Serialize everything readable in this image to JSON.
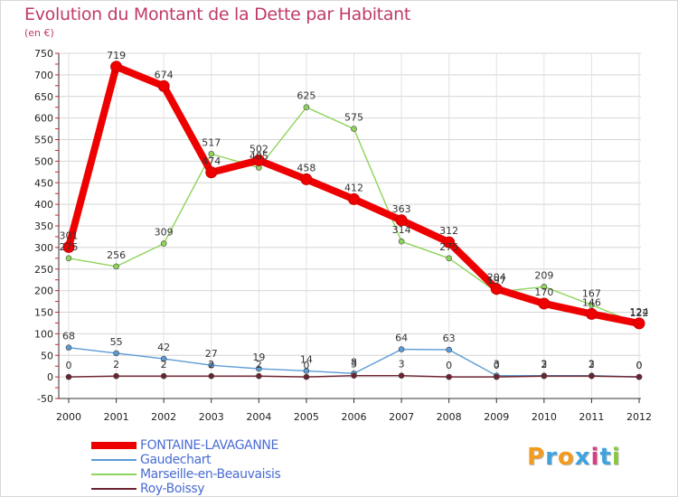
{
  "title": "Evolution du Montant de la Dette par Habitant",
  "subtitle": "(en €)",
  "chart_data": {
    "type": "line",
    "title": "Evolution du Montant de la Dette par Habitant",
    "subtitle": "(en €)",
    "x": [
      "2000",
      "2001",
      "2002",
      "2003",
      "2004",
      "2005",
      "2006",
      "2007",
      "2008",
      "2009",
      "2010",
      "2011",
      "2012"
    ],
    "ylim": [
      -50,
      750
    ],
    "yticks": [
      -50,
      0,
      50,
      100,
      150,
      200,
      250,
      300,
      350,
      400,
      450,
      500,
      550,
      600,
      650,
      700,
      750
    ],
    "grid": true,
    "legend_position": "bottom-left",
    "series": [
      {
        "name": "Marseille-en-Beauvaisis",
        "color": "#8ed45a",
        "values": [
          275,
          256,
          309,
          517,
          485,
          625,
          575,
          314,
          275,
          197,
          209,
          167,
          122
        ]
      },
      {
        "name": "Gaudechart",
        "color": "#5b9bd5",
        "values": [
          68,
          55,
          42,
          27,
          19,
          14,
          8,
          64,
          63,
          3,
          3,
          3,
          0
        ]
      },
      {
        "name": "Roy-Boissy",
        "color": "#6e2230",
        "values": [
          0,
          2,
          2,
          2,
          2,
          0,
          3,
          3,
          0,
          0,
          2,
          2,
          0
        ]
      },
      {
        "name": "FONTAINE-LAVAGANNE",
        "color": "#ee0000",
        "values": [
          301,
          719,
          674,
          474,
          502,
          458,
          412,
          363,
          312,
          204,
          170,
          146,
          124
        ]
      }
    ]
  },
  "legend": [
    {
      "name": "FONTAINE-LAVAGANNE",
      "color": "#ee0000",
      "thickness": 8
    },
    {
      "name": "Gaudechart",
      "color": "#5b9bd5",
      "thickness": 2
    },
    {
      "name": "Marseille-en-Beauvaisis",
      "color": "#8ed45a",
      "thickness": 2
    },
    {
      "name": "Roy-Boissy",
      "color": "#6e2230",
      "thickness": 2
    }
  ],
  "logo": {
    "letters": [
      "P",
      "r",
      "o",
      "x",
      "i",
      "t",
      "i"
    ],
    "colors": [
      "#f29b1c",
      "#3fa3e0",
      "#f29b1c",
      "#3fa3e0",
      "#d63f84",
      "#3fa3e0",
      "#8cc63f"
    ]
  }
}
